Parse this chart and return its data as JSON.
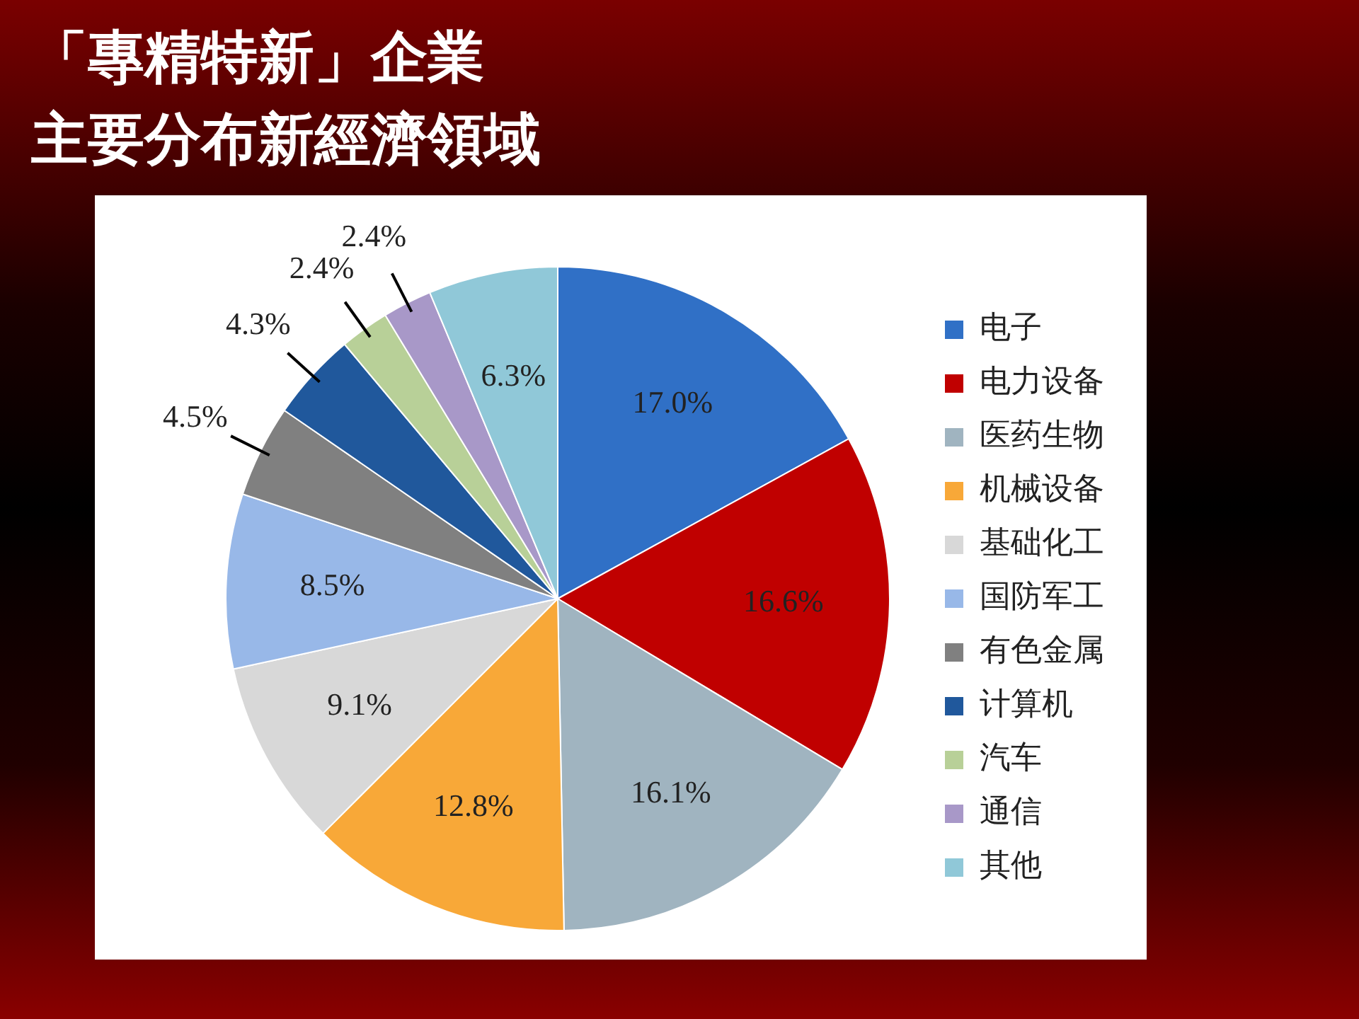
{
  "chart_data": {
    "type": "pie",
    "title": "「專精特新」企業",
    "subtitle": "主要分布新經濟領域",
    "categories": [
      "电子",
      "电力设备",
      "医药生物",
      "机械设备",
      "基础化工",
      "国防军工",
      "有色金属",
      "计算机",
      "汽车",
      "通信",
      "其他"
    ],
    "values": [
      17.0,
      16.6,
      16.1,
      12.8,
      9.1,
      8.5,
      4.5,
      4.3,
      2.4,
      2.4,
      6.3
    ],
    "value_labels": [
      "17.0%",
      "16.6%",
      "16.1%",
      "12.8%",
      "9.1%",
      "8.5%",
      "4.5%",
      "4.3%",
      "2.4%",
      "2.4%",
      "6.3%"
    ],
    "colors": [
      "#3070c6",
      "#c00000",
      "#a0b4c0",
      "#f8a838",
      "#d8d8d8",
      "#98b8e8",
      "#808080",
      "#20589c",
      "#b8d098",
      "#a898c8",
      "#90c8d8"
    ],
    "legend": "right"
  }
}
